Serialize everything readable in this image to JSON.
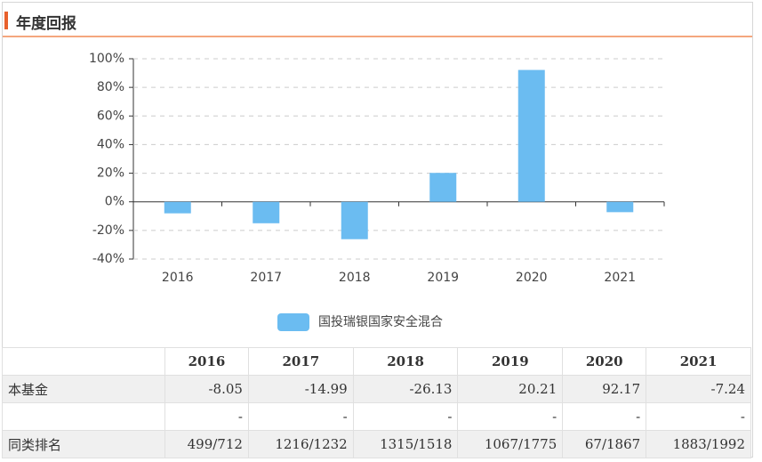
{
  "header": {
    "title": "年度回报"
  },
  "chart_data": {
    "type": "bar",
    "categories": [
      "2016",
      "2017",
      "2018",
      "2019",
      "2020",
      "2021"
    ],
    "series": [
      {
        "name": "国投瑞银国家安全混合",
        "color": "#6bbcf1",
        "values": [
          -8.05,
          -14.99,
          -26.13,
          20.21,
          92.17,
          -7.24
        ]
      }
    ],
    "ylim": [
      -40,
      100
    ],
    "yticks": [
      {
        "value": -40,
        "label": "-40%"
      },
      {
        "value": -20,
        "label": "-20%"
      },
      {
        "value": 0,
        "label": "0%"
      },
      {
        "value": 20,
        "label": "20%"
      },
      {
        "value": 40,
        "label": "40%"
      },
      {
        "value": 60,
        "label": "60%"
      },
      {
        "value": 80,
        "label": "80%"
      },
      {
        "value": 100,
        "label": "100%"
      }
    ],
    "grid": true
  },
  "table": {
    "rows": [
      {
        "label": "本基金"
      },
      {
        "cells": [
          "-",
          "-",
          "-",
          "-",
          "-",
          "-"
        ]
      },
      {
        "label": "同类排名",
        "cells": [
          "499/712",
          "1216/1232",
          "1315/1518",
          "1067/1775",
          "67/1867",
          "1883/1992"
        ]
      }
    ]
  }
}
